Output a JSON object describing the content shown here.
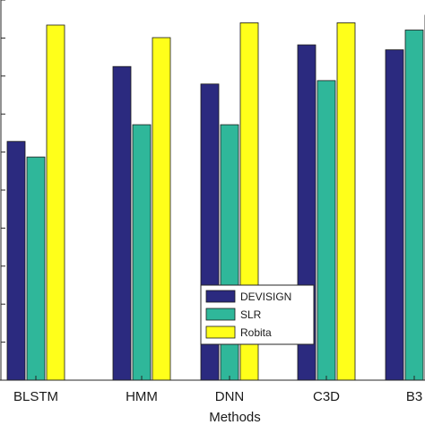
{
  "chart_data": {
    "type": "bar",
    "title": "",
    "xlabel": "Methods",
    "ylabel": "",
    "categories": [
      "BLSTM",
      "HMM",
      "DNN",
      "C3D",
      "B3"
    ],
    "series": [
      {
        "name": "DEVISIGN",
        "color": "#2b2a7f",
        "values": [
          62.8,
          82.5,
          77.9,
          88.2,
          86.9
        ]
      },
      {
        "name": "SLR",
        "color": "#2fb79a",
        "values": [
          58.7,
          67.2,
          67.2,
          78.8,
          92.1
        ]
      },
      {
        "name": "Robita",
        "color": "#ffff1a",
        "values": [
          93.4,
          90.1,
          94.0,
          94.0,
          96.0
        ]
      }
    ],
    "ylim": [
      0,
      100
    ],
    "grid": false,
    "legend": "bottom-center"
  }
}
